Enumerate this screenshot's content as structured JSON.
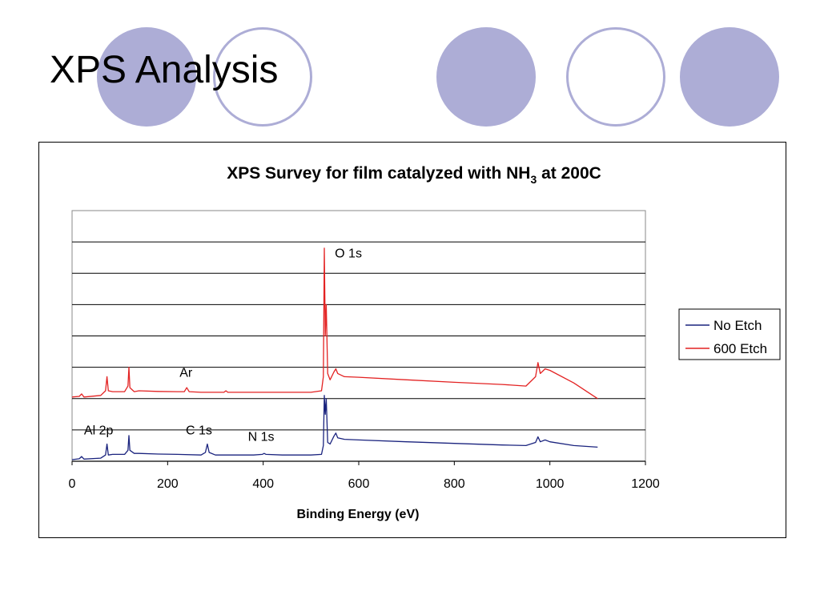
{
  "slide": {
    "title": "XPS Analysis"
  },
  "colors": {
    "decor": "#adadd6",
    "no_etch": "#1a237e",
    "etch_600": "#e32222"
  },
  "chart_data": {
    "type": "line",
    "title_main": "XPS Survey for film catalyzed with NH",
    "title_sub": "3",
    "title_end": " at 200C",
    "xlabel": "Binding Energy (eV)",
    "ylabel": "",
    "xlim": [
      0,
      1200
    ],
    "ylim": [
      0,
      8
    ],
    "x_ticks": [
      0,
      200,
      400,
      600,
      800,
      1000,
      1200
    ],
    "y_gridlines": 8,
    "y_tick_labels_shown": false,
    "legend_position": "right",
    "annotations": [
      {
        "text": "O 1s",
        "x": 550,
        "y": 6.5
      },
      {
        "text": "Ar",
        "x": 225,
        "y": 2.7
      },
      {
        "text": "Al 2p",
        "x": 25,
        "y": 0.85
      },
      {
        "text": "C 1s",
        "x": 238,
        "y": 0.85
      },
      {
        "text": "N 1s",
        "x": 368,
        "y": 0.65
      }
    ],
    "series": [
      {
        "name": "No Etch",
        "color": "#1a237e",
        "points": [
          [
            0,
            0.05
          ],
          [
            15,
            0.08
          ],
          [
            20,
            0.15
          ],
          [
            25,
            0.07
          ],
          [
            60,
            0.1
          ],
          [
            70,
            0.2
          ],
          [
            73,
            0.55
          ],
          [
            76,
            0.2
          ],
          [
            85,
            0.22
          ],
          [
            110,
            0.22
          ],
          [
            117,
            0.35
          ],
          [
            119,
            0.82
          ],
          [
            121,
            0.35
          ],
          [
            130,
            0.25
          ],
          [
            140,
            0.25
          ],
          [
            180,
            0.23
          ],
          [
            220,
            0.22
          ],
          [
            270,
            0.2
          ],
          [
            279,
            0.28
          ],
          [
            283,
            0.55
          ],
          [
            287,
            0.28
          ],
          [
            300,
            0.2
          ],
          [
            380,
            0.2
          ],
          [
            398,
            0.22
          ],
          [
            402,
            0.25
          ],
          [
            406,
            0.22
          ],
          [
            440,
            0.2
          ],
          [
            500,
            0.2
          ],
          [
            522,
            0.22
          ],
          [
            526,
            0.5
          ],
          [
            528,
            2.1
          ],
          [
            530,
            1.5
          ],
          [
            532,
            2.0
          ],
          [
            535,
            0.6
          ],
          [
            540,
            0.55
          ],
          [
            548,
            0.8
          ],
          [
            552,
            0.9
          ],
          [
            556,
            0.75
          ],
          [
            570,
            0.7
          ],
          [
            600,
            0.68
          ],
          [
            700,
            0.62
          ],
          [
            800,
            0.57
          ],
          [
            900,
            0.52
          ],
          [
            950,
            0.5
          ],
          [
            970,
            0.6
          ],
          [
            975,
            0.78
          ],
          [
            980,
            0.62
          ],
          [
            990,
            0.68
          ],
          [
            1000,
            0.62
          ],
          [
            1050,
            0.5
          ],
          [
            1100,
            0.45
          ]
        ]
      },
      {
        "name": "600 Etch",
        "color": "#e32222",
        "points": [
          [
            0,
            2.05
          ],
          [
            15,
            2.07
          ],
          [
            20,
            2.15
          ],
          [
            25,
            2.05
          ],
          [
            60,
            2.1
          ],
          [
            70,
            2.25
          ],
          [
            73,
            2.7
          ],
          [
            76,
            2.25
          ],
          [
            85,
            2.22
          ],
          [
            110,
            2.22
          ],
          [
            117,
            2.4
          ],
          [
            119,
            3.0
          ],
          [
            121,
            2.35
          ],
          [
            130,
            2.22
          ],
          [
            140,
            2.25
          ],
          [
            180,
            2.23
          ],
          [
            220,
            2.22
          ],
          [
            235,
            2.22
          ],
          [
            240,
            2.35
          ],
          [
            245,
            2.22
          ],
          [
            270,
            2.2
          ],
          [
            318,
            2.2
          ],
          [
            322,
            2.25
          ],
          [
            326,
            2.2
          ],
          [
            380,
            2.2
          ],
          [
            440,
            2.2
          ],
          [
            500,
            2.2
          ],
          [
            522,
            2.25
          ],
          [
            526,
            2.7
          ],
          [
            528,
            6.8
          ],
          [
            530,
            4.0
          ],
          [
            532,
            5.0
          ],
          [
            535,
            2.8
          ],
          [
            540,
            2.6
          ],
          [
            548,
            2.85
          ],
          [
            552,
            2.95
          ],
          [
            556,
            2.8
          ],
          [
            570,
            2.7
          ],
          [
            600,
            2.68
          ],
          [
            700,
            2.6
          ],
          [
            800,
            2.52
          ],
          [
            900,
            2.45
          ],
          [
            950,
            2.4
          ],
          [
            970,
            2.7
          ],
          [
            975,
            3.15
          ],
          [
            980,
            2.8
          ],
          [
            990,
            2.95
          ],
          [
            1000,
            2.9
          ],
          [
            1050,
            2.5
          ],
          [
            1100,
            2.0
          ]
        ]
      }
    ]
  }
}
